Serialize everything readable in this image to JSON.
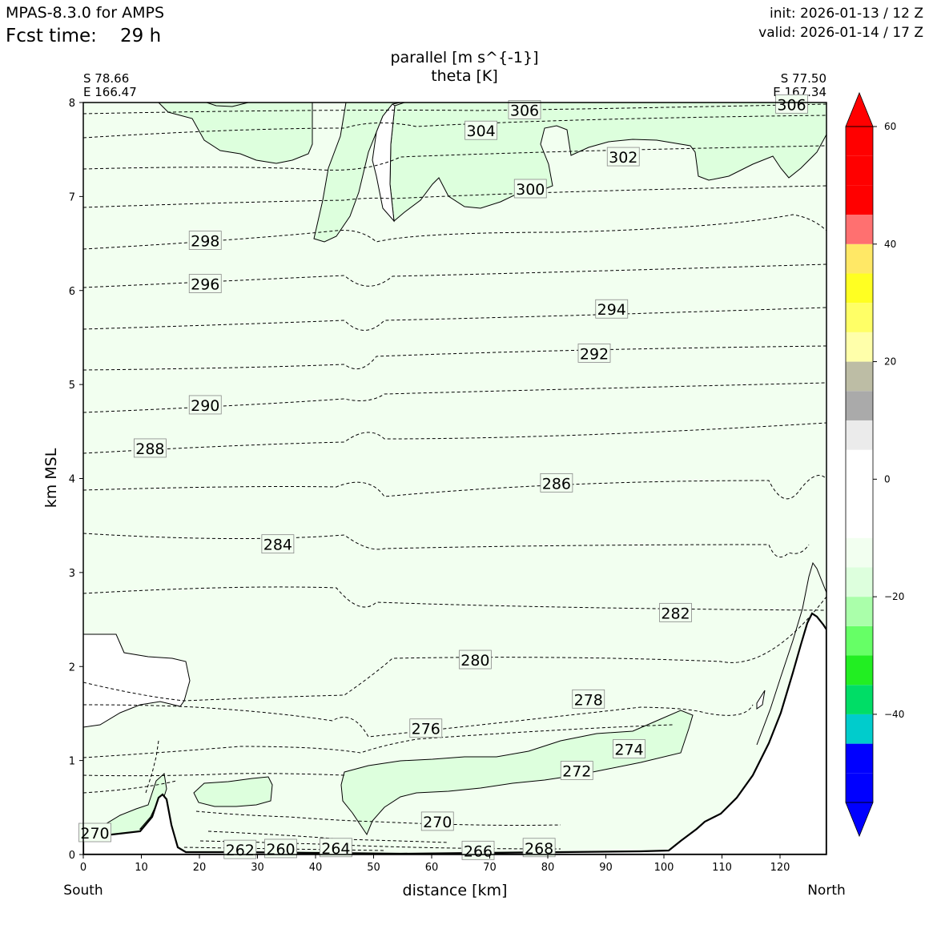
{
  "header": {
    "model": "MPAS-8.3.0 for AMPS",
    "fcst_label": "Fcst time:",
    "fcst_value": "29 h",
    "init": "init: 2026-01-13 / 12 Z",
    "valid": "valid: 2026-01-14 / 17 Z"
  },
  "chart_data": {
    "type": "contour-cross-section",
    "title_line1": "parallel [m s^{-1}]",
    "title_line2": "theta [K]",
    "xlabel": "distance [km]",
    "ylabel": "km MSL",
    "xlim": [
      0,
      128
    ],
    "ylim": [
      0,
      8
    ],
    "x_ticks": [
      0,
      10,
      20,
      30,
      40,
      50,
      60,
      70,
      80,
      90,
      100,
      110,
      120
    ],
    "y_ticks": [
      0,
      1,
      2,
      3,
      4,
      5,
      6,
      7,
      8
    ],
    "endpoints": {
      "left": {
        "lat": "S 78.66",
        "lon": "E 166.47",
        "direction": "South"
      },
      "right": {
        "lat": "S 77.50",
        "lon": "E 167.34",
        "direction": "North"
      }
    },
    "theta_contour_labels": [
      {
        "value": "306",
        "x": 76,
        "y": 7.92
      },
      {
        "value": "306",
        "x": 122,
        "y": 7.98
      },
      {
        "value": "304",
        "x": 68.5,
        "y": 7.7
      },
      {
        "value": "302",
        "x": 93,
        "y": 7.42
      },
      {
        "value": "300",
        "x": 77,
        "y": 7.08
      },
      {
        "value": "298",
        "x": 21,
        "y": 6.53
      },
      {
        "value": "296",
        "x": 21,
        "y": 6.07
      },
      {
        "value": "294",
        "x": 91,
        "y": 5.8
      },
      {
        "value": "292",
        "x": 88,
        "y": 5.33
      },
      {
        "value": "290",
        "x": 21,
        "y": 4.78
      },
      {
        "value": "288",
        "x": 11.5,
        "y": 4.32
      },
      {
        "value": "286",
        "x": 81.5,
        "y": 3.95
      },
      {
        "value": "284",
        "x": 33.5,
        "y": 3.3
      },
      {
        "value": "282",
        "x": 102,
        "y": 2.57
      },
      {
        "value": "280",
        "x": 67.5,
        "y": 2.07
      },
      {
        "value": "278",
        "x": 87,
        "y": 1.65
      },
      {
        "value": "276",
        "x": 59,
        "y": 1.34
      },
      {
        "value": "274",
        "x": 94,
        "y": 1.12
      },
      {
        "value": "272",
        "x": 85,
        "y": 0.89
      },
      {
        "value": "270",
        "x": 61,
        "y": 0.35
      },
      {
        "value": "270",
        "x": 2,
        "y": 0.23
      },
      {
        "value": "268",
        "x": 78.5,
        "y": 0.07
      },
      {
        "value": "266",
        "x": 68,
        "y": 0.04
      },
      {
        "value": "264",
        "x": 43.5,
        "y": 0.07
      },
      {
        "value": "262",
        "x": 27,
        "y": 0.05
      },
      {
        "value": "260",
        "x": 34,
        "y": 0.06
      }
    ],
    "colorbar": {
      "tick_labels": [
        "60",
        "40",
        "20",
        "0",
        "−20",
        "−40"
      ],
      "tick_values": [
        60,
        40,
        20,
        0,
        -20,
        -40
      ],
      "range": [
        -55,
        65
      ],
      "levels": [
        -55,
        -50,
        -45,
        -40,
        -35,
        -30,
        -25,
        -20,
        -15,
        -10,
        -5,
        5,
        10,
        15,
        20,
        25,
        30,
        35,
        40,
        45,
        50,
        55,
        60
      ],
      "colors": [
        "#0000ff",
        "#0000ff",
        "#00cccc",
        "#00dd66",
        "#22ee22",
        "#66ff66",
        "#aaffaa",
        "#ddffdd",
        "#f2fff0",
        "#ffffff",
        "#ffffff",
        "#ebebeb",
        "#aaaaaa",
        "#bdbda5",
        "#ffffaa",
        "#ffff66",
        "#ffff22",
        "#ffe866",
        "#ff7070",
        "#ff0000",
        "#ff0000",
        "#ff0000"
      ],
      "under_color": "#0000ff",
      "over_color": "#ff0000"
    },
    "colors": {
      "background_fill": "#f2fff0",
      "light_green": "#ddffdd",
      "mid_green": "#aaffaa",
      "terrain": "#ffffff"
    }
  }
}
